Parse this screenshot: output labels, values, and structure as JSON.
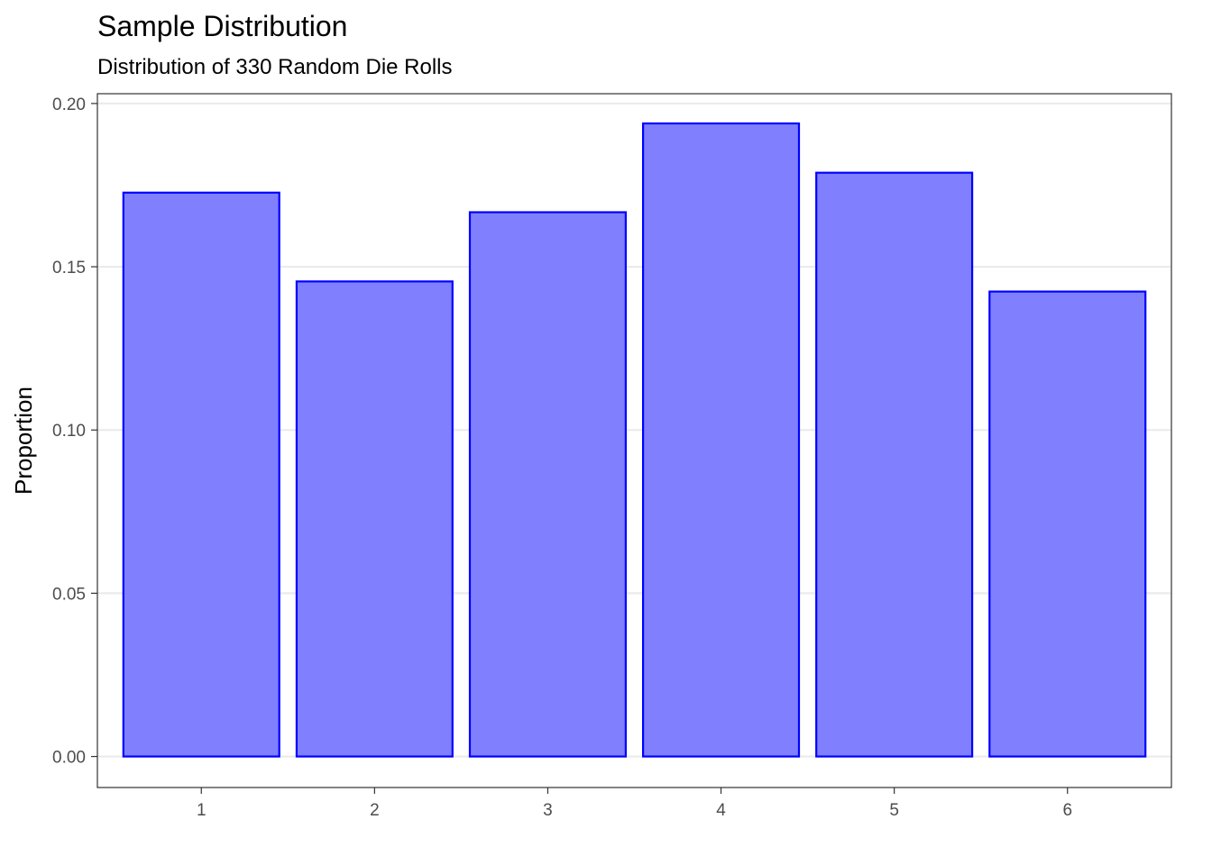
{
  "chart_data": {
    "type": "bar",
    "title": "Sample Distribution",
    "subtitle": "Distribution of 330 Random Die Rolls",
    "xlabel": "",
    "ylabel": "Proportion",
    "categories": [
      "1",
      "2",
      "3",
      "4",
      "5",
      "6"
    ],
    "values": [
      0.1727,
      0.1455,
      0.1667,
      0.1939,
      0.1788,
      0.1424
    ],
    "ylim": [
      -0.0095,
      0.203
    ],
    "yticks": [
      0.0,
      0.05,
      0.1,
      0.15,
      0.2
    ],
    "ytick_labels": [
      "0.00",
      "0.05",
      "0.10",
      "0.15",
      "0.20"
    ],
    "grid": true,
    "legend": "none",
    "bar_fill": "#8080ff",
    "bar_stroke": "#0000ff",
    "grid_color": "#ebebeb",
    "panel_border_color": "#333333"
  }
}
